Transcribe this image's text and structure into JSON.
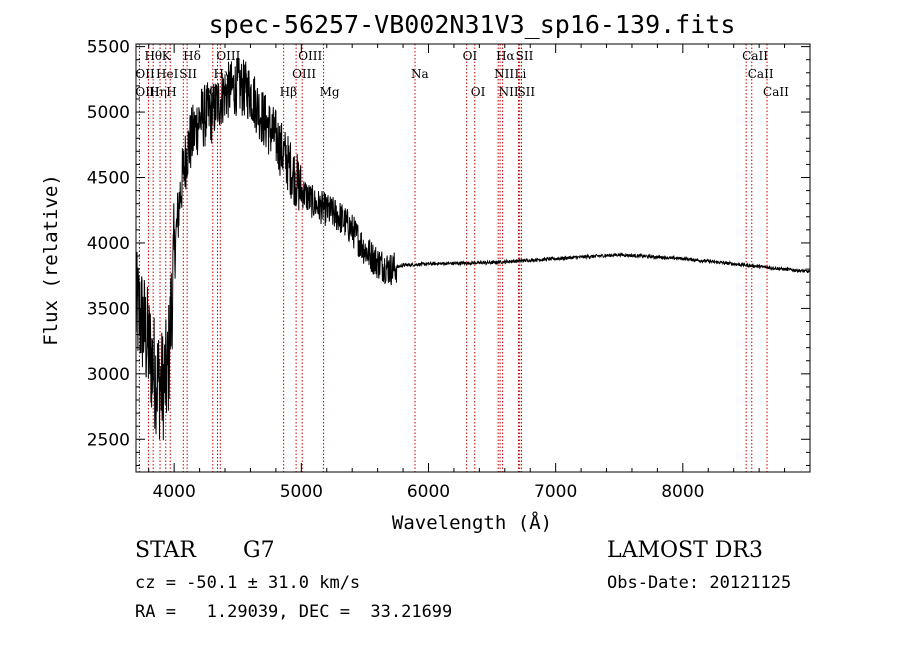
{
  "chart_data": {
    "type": "line",
    "title": "spec-56257-VB002N31V3_sp16-139.fits",
    "xlabel": "Wavelength (Å)",
    "ylabel": "Flux (relative)",
    "xlim": [
      3700,
      9000
    ],
    "ylim": [
      2250,
      5520
    ],
    "xticks": [
      4000,
      5000,
      6000,
      7000,
      8000
    ],
    "yticks": [
      2500,
      3000,
      3500,
      4000,
      4500,
      5000,
      5500
    ],
    "spectrum_anchor_points": {
      "wavelength": [
        3700,
        3750,
        3800,
        3850,
        3900,
        3950,
        4000,
        4050,
        4100,
        4200,
        4300,
        4400,
        4500,
        4600,
        4700,
        4800,
        4900,
        5000,
        5100,
        5200,
        5300,
        5400,
        5500,
        5600,
        5700,
        5800,
        6000,
        6500,
        7000,
        7500,
        8000,
        8500,
        8800,
        8900,
        9000
      ],
      "flux": [
        3500,
        3400,
        3200,
        3000,
        2900,
        3000,
        3900,
        4400,
        4700,
        4950,
        5000,
        5150,
        5200,
        5150,
        4950,
        4800,
        4600,
        4400,
        4300,
        4250,
        4200,
        4100,
        3950,
        3850,
        3800,
        3830,
        3840,
        3850,
        3880,
        3910,
        3880,
        3830,
        3800,
        3790,
        3780
      ]
    },
    "emission_lines": [
      {
        "name": "Hθ",
        "wavelength": 3798,
        "row": 0
      },
      {
        "name": "K",
        "wavelength": 3934,
        "row": 0
      },
      {
        "name": "Hδ",
        "wavelength": 4102,
        "row": 0
      },
      {
        "name": "OII",
        "wavelength": 3727,
        "row": 1
      },
      {
        "name": "HeI",
        "wavelength": 3889,
        "row": 1
      },
      {
        "name": "SII",
        "wavelength": 4072,
        "row": 1
      },
      {
        "name": "OIII",
        "wavelength": 3727,
        "row": 2
      },
      {
        "name": "Hη",
        "wavelength": 3835,
        "row": 2
      },
      {
        "name": "H",
        "wavelength": 3969,
        "row": 2
      },
      {
        "name": "OIII",
        "wavelength": 4363,
        "row": 0
      },
      {
        "name": "Hγ",
        "wavelength": 4341,
        "row": 1
      },
      {
        "name": "G",
        "wavelength": 4304,
        "row": 2
      },
      {
        "name": "OIII",
        "wavelength": 5007,
        "row": 0
      },
      {
        "name": "OIII",
        "wavelength": 4959,
        "row": 1
      },
      {
        "name": "Hβ",
        "wavelength": 4861,
        "row": 2
      },
      {
        "name": "Mg",
        "wavelength": 5175,
        "row": 2
      },
      {
        "name": "Na",
        "wavelength": 5894,
        "row": 1
      },
      {
        "name": "OI",
        "wavelength": 6300,
        "row": 0
      },
      {
        "name": "OI",
        "wavelength": 6364,
        "row": 2
      },
      {
        "name": "Hα",
        "wavelength": 6563,
        "row": 0
      },
      {
        "name": "SII",
        "wavelength": 6717,
        "row": 0
      },
      {
        "name": "NII",
        "wavelength": 6548,
        "row": 1
      },
      {
        "name": "Li",
        "wavelength": 6708,
        "row": 1
      },
      {
        "name": "NII",
        "wavelength": 6583,
        "row": 2
      },
      {
        "name": "SII",
        "wavelength": 6731,
        "row": 2
      },
      {
        "name": "CaII",
        "wavelength": 8498,
        "row": 0
      },
      {
        "name": "CaII",
        "wavelength": 8542,
        "row": 1
      },
      {
        "name": "CaII",
        "wavelength": 8662,
        "row": 2
      }
    ],
    "line_color": "#000000",
    "marker_color": "#cc0000"
  },
  "info": {
    "object_type": "STAR",
    "subclass": "G7",
    "survey": "LAMOST DR3",
    "redshift_text": "cz = -50.1 ± 31.0 km/s",
    "obs_date_text": "Obs-Date: 20121125",
    "coords_text": "RA =   1.29039, DEC =  33.21699"
  }
}
